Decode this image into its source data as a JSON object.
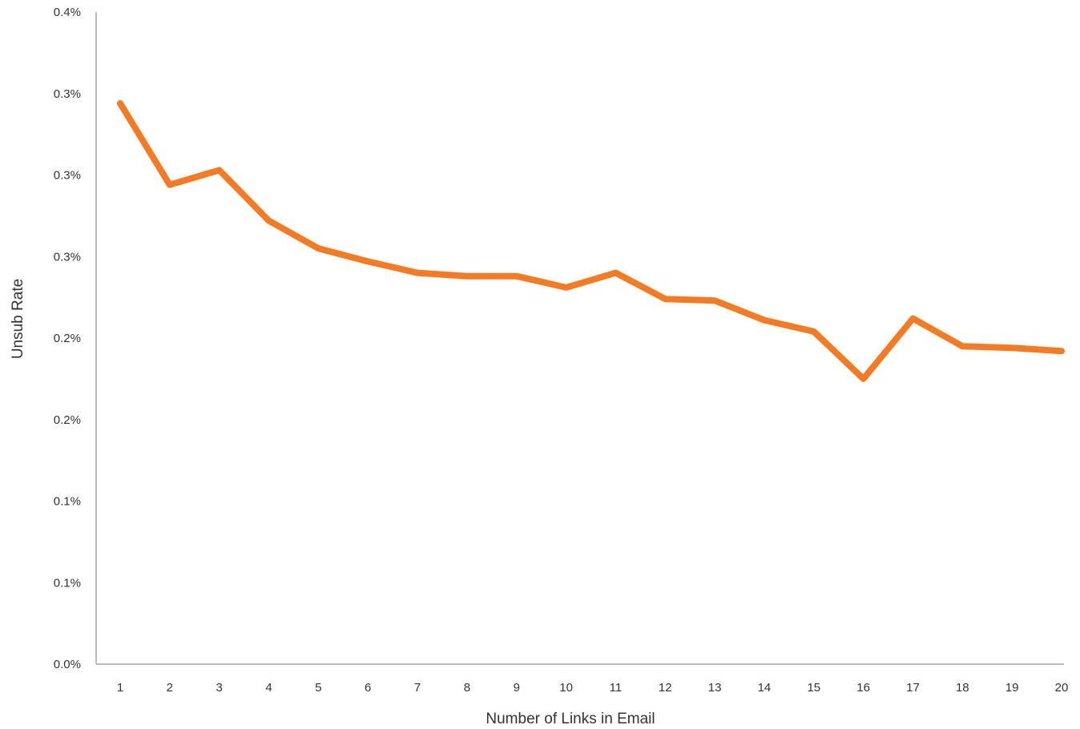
{
  "chart_data": {
    "type": "line",
    "title": "",
    "xlabel": "Number of Links in Email",
    "ylabel": "Unsub Rate",
    "x": [
      1,
      2,
      3,
      4,
      5,
      6,
      7,
      8,
      9,
      10,
      11,
      12,
      13,
      14,
      15,
      16,
      17,
      18,
      19,
      20
    ],
    "x_tick_labels": [
      "1",
      "2",
      "3",
      "4",
      "5",
      "6",
      "7",
      "8",
      "9",
      "10",
      "11",
      "12",
      "13",
      "14",
      "15",
      "16",
      "17",
      "18",
      "19",
      "20"
    ],
    "y_tick_values": [
      0,
      0.05,
      0.1,
      0.15,
      0.2,
      0.25,
      0.3,
      0.35,
      0.4
    ],
    "y_tick_labels": [
      "0.0%",
      "0.1%",
      "0.1%",
      "0.2%",
      "0.2%",
      "0.3%",
      "0.3%",
      "0.3%",
      "0.4%"
    ],
    "ylim": [
      0,
      0.4
    ],
    "series": [
      {
        "values": [
          0.344,
          0.294,
          0.303,
          0.272,
          0.255,
          0.247,
          0.24,
          0.238,
          0.238,
          0.231,
          0.24,
          0.224,
          0.223,
          0.211,
          0.204,
          0.175,
          0.212,
          0.195,
          0.194,
          0.192
        ],
        "color": "#f47b26"
      }
    ],
    "grid": false,
    "legend": "none"
  }
}
